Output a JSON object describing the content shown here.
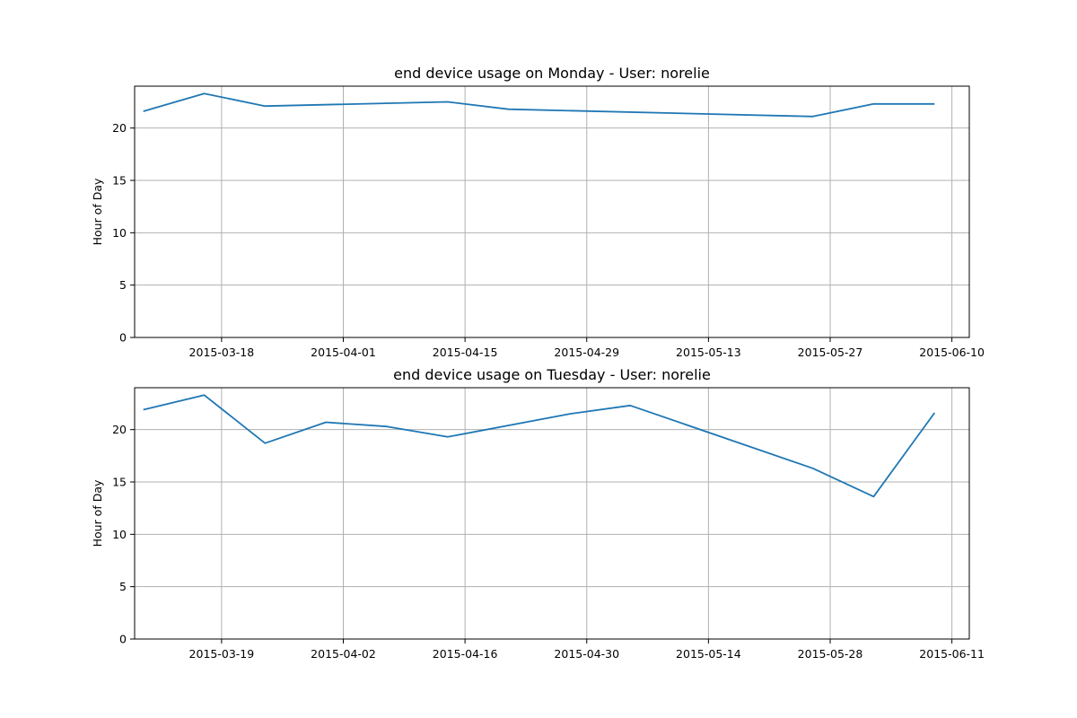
{
  "chart_data": [
    {
      "type": "line",
      "title": "end device usage on Monday - User: norelie",
      "xlabel": "",
      "ylabel": "Hour of Day",
      "ylim": [
        0,
        24
      ],
      "xlim": [
        "2015-03-08",
        "2015-06-12"
      ],
      "yticks": [
        0,
        5,
        10,
        15,
        20
      ],
      "xticks": [
        "2015-03-18",
        "2015-04-01",
        "2015-04-15",
        "2015-04-29",
        "2015-05-13",
        "2015-05-27",
        "2015-06-10"
      ],
      "grid": true,
      "series": [
        {
          "color": "#1f77b4",
          "x": [
            "2015-03-09",
            "2015-03-16",
            "2015-03-23",
            "2015-04-13",
            "2015-04-20",
            "2015-05-25",
            "2015-06-01",
            "2015-06-08"
          ],
          "values": [
            21.6,
            23.3,
            22.1,
            22.5,
            21.8,
            21.1,
            22.3,
            22.3
          ]
        }
      ]
    },
    {
      "type": "line",
      "title": "end device usage on Tuesday  - User: norelie",
      "xlabel": "",
      "ylabel": "Hour of Day",
      "ylim": [
        0,
        24
      ],
      "xlim": [
        "2015-03-09",
        "2015-06-13"
      ],
      "yticks": [
        0,
        5,
        10,
        15,
        20
      ],
      "xticks": [
        "2015-03-19",
        "2015-04-02",
        "2015-04-16",
        "2015-04-30",
        "2015-05-14",
        "2015-05-28",
        "2015-06-11"
      ],
      "grid": true,
      "series": [
        {
          "color": "#1f77b4",
          "x": [
            "2015-03-10",
            "2015-03-17",
            "2015-03-24",
            "2015-03-31",
            "2015-04-07",
            "2015-04-14",
            "2015-04-28",
            "2015-05-05",
            "2015-05-26",
            "2015-06-02",
            "2015-06-09"
          ],
          "values": [
            21.9,
            23.3,
            18.7,
            20.7,
            20.3,
            19.3,
            21.5,
            22.3,
            16.3,
            13.6,
            21.6
          ]
        }
      ]
    }
  ]
}
